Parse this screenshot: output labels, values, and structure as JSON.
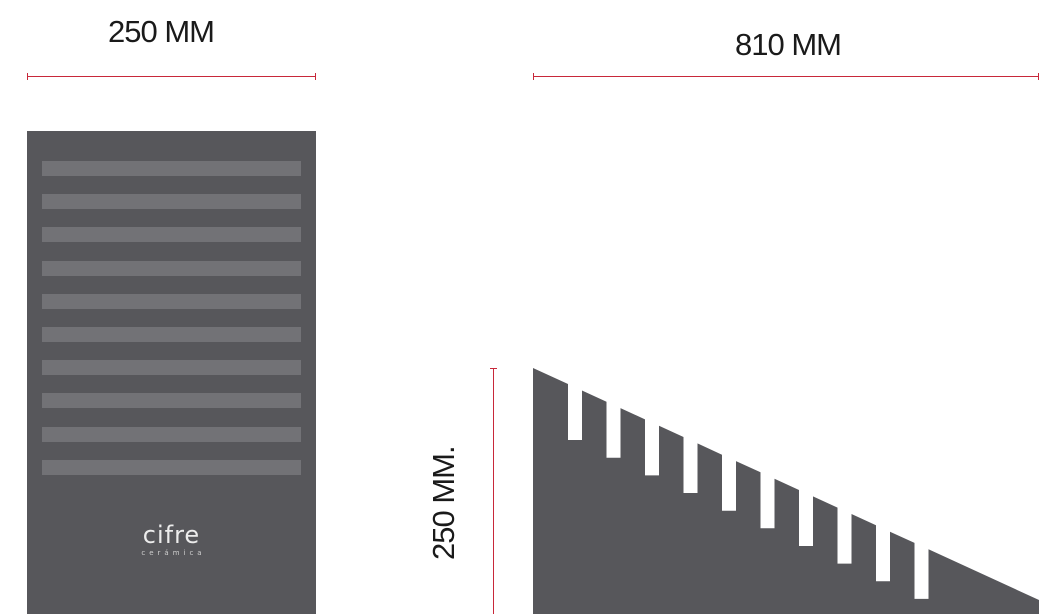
{
  "colors": {
    "panel": "#57575b",
    "stripe": "#727276",
    "dimension_line": "#c8283a",
    "label": "#1a1a1a",
    "background": "#ffffff"
  },
  "dimensions": {
    "front_width_label": "250 MM",
    "side_width_label": "810 MM",
    "side_height_label": "250 MM."
  },
  "front_view": {
    "stripe_count": 10,
    "brand_name": "cifre",
    "brand_subtitle": "cerámica"
  },
  "side_view": {
    "notch_count": 10
  }
}
